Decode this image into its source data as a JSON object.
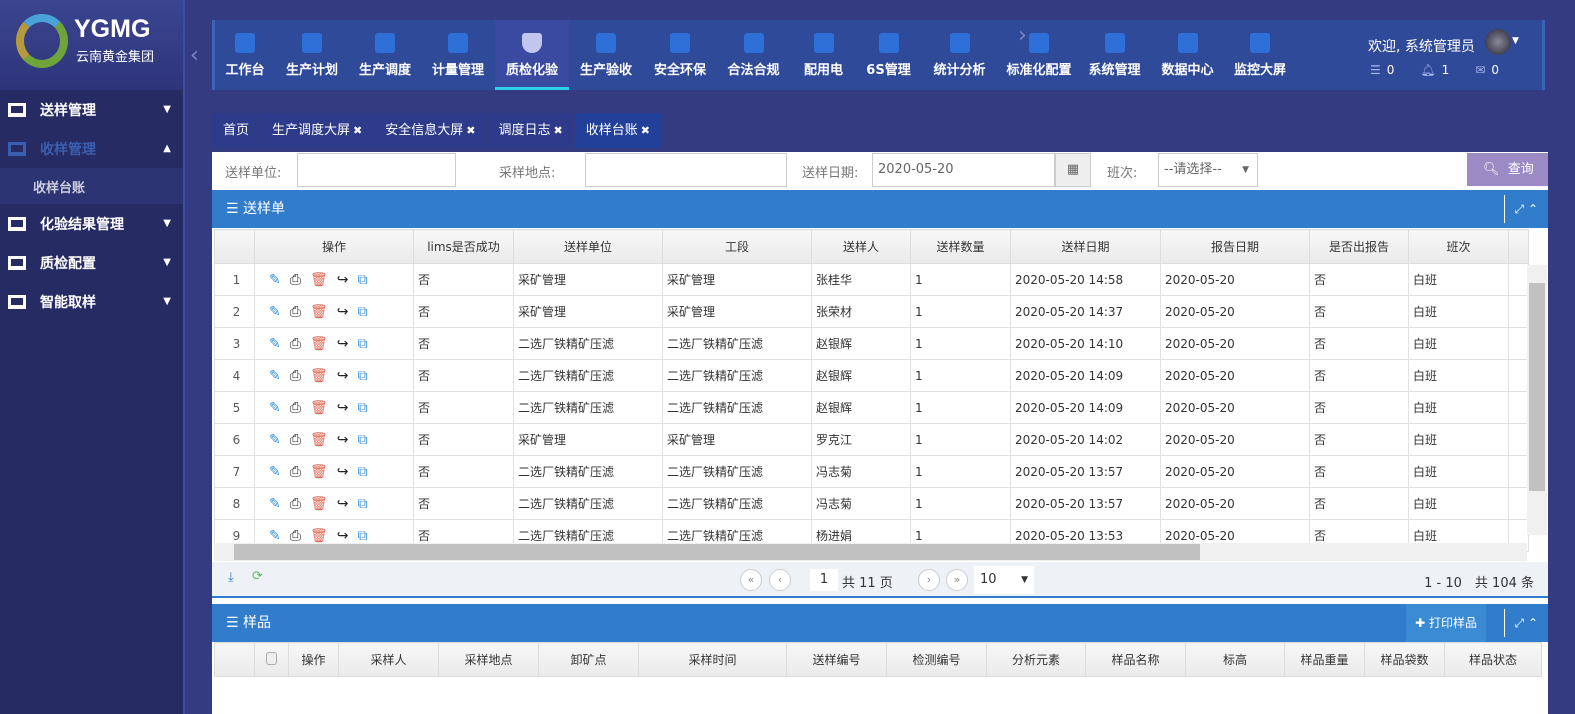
{
  "logo": {
    "en": "YGMG",
    "cn": "云南黄金集团"
  },
  "sidebar": {
    "items": [
      {
        "label": "送样管理",
        "open": false
      },
      {
        "label": "收样管理",
        "open": true,
        "sub": "收样台账"
      },
      {
        "label": "化验结果管理"
      },
      {
        "label": "质检配置"
      },
      {
        "label": "智能取样"
      }
    ]
  },
  "topnav": {
    "items": [
      "工作台",
      "生产计划",
      "生产调度",
      "计量管理",
      "质检化验",
      "生产验收",
      "安全环保",
      "合法合规",
      "配用电",
      "6S管理",
      "统计分析",
      "标准化配置",
      "系统管理",
      "数据中心",
      "监控大屏"
    ],
    "active": "质检化验"
  },
  "user": {
    "welcome": "欢迎, 系统管理员",
    "tasks": "0",
    "notifications": "1",
    "messages": "0"
  },
  "tabs": [
    {
      "label": "首页",
      "closable": false
    },
    {
      "label": "生产调度大屏",
      "closable": true
    },
    {
      "label": "安全信息大屏",
      "closable": true
    },
    {
      "label": "调度日志",
      "closable": true
    },
    {
      "label": "收样台账",
      "closable": true,
      "active": true
    }
  ],
  "filter": {
    "unit_label": "送样单位:",
    "unit_value": "",
    "site_label": "采样地点:",
    "site_value": "",
    "date_label": "送样日期:",
    "date_value": "2020-05-20",
    "shift_label": "班次:",
    "shift_value": "--请选择--",
    "query_label": "查询"
  },
  "sample_order": {
    "title": "送样单",
    "columns": [
      "操作",
      "lims是否成功",
      "送样单位",
      "工段",
      "送样人",
      "送样数量",
      "送样日期",
      "报告日期",
      "是否出报告",
      "班次"
    ],
    "rows": [
      [
        "1",
        "否",
        "采矿管理",
        "采矿管理",
        "张桂华",
        "1",
        "2020-05-20 14:58",
        "2020-05-20",
        "否",
        "白班"
      ],
      [
        "2",
        "否",
        "采矿管理",
        "采矿管理",
        "张荣材",
        "1",
        "2020-05-20 14:37",
        "2020-05-20",
        "否",
        "白班"
      ],
      [
        "3",
        "否",
        "二选厂铁精矿压滤",
        "二选厂铁精矿压滤",
        "赵银辉",
        "1",
        "2020-05-20 14:10",
        "2020-05-20",
        "否",
        "白班"
      ],
      [
        "4",
        "否",
        "二选厂铁精矿压滤",
        "二选厂铁精矿压滤",
        "赵银辉",
        "1",
        "2020-05-20 14:09",
        "2020-05-20",
        "否",
        "白班"
      ],
      [
        "5",
        "否",
        "二选厂铁精矿压滤",
        "二选厂铁精矿压滤",
        "赵银辉",
        "1",
        "2020-05-20 14:09",
        "2020-05-20",
        "否",
        "白班"
      ],
      [
        "6",
        "否",
        "采矿管理",
        "采矿管理",
        "罗克江",
        "1",
        "2020-05-20 14:02",
        "2020-05-20",
        "否",
        "白班"
      ],
      [
        "7",
        "否",
        "二选厂铁精矿压滤",
        "二选厂铁精矿压滤",
        "冯志菊",
        "1",
        "2020-05-20 13:57",
        "2020-05-20",
        "否",
        "白班"
      ],
      [
        "8",
        "否",
        "二选厂铁精矿压滤",
        "二选厂铁精矿压滤",
        "冯志菊",
        "1",
        "2020-05-20 13:57",
        "2020-05-20",
        "否",
        "白班"
      ],
      [
        "9",
        "否",
        "二选厂铁精矿压滤",
        "二选厂铁精矿压滤",
        "杨进娟",
        "1",
        "2020-05-20 13:53",
        "2020-05-20",
        "否",
        "白班"
      ]
    ],
    "pager": {
      "page": "1",
      "total_pages": "共 11 页",
      "page_size": "10",
      "summary": "1 - 10　共 104 条"
    }
  },
  "samples": {
    "title": "样品",
    "print_label": "打印样品",
    "columns": [
      "操作",
      "采样人",
      "采样地点",
      "卸矿点",
      "采样时间",
      "送样编号",
      "检测编号",
      "分析元素",
      "样品名称",
      "标高",
      "样品重量",
      "样品袋数",
      "样品状态"
    ]
  },
  "colors": {
    "sidebar": "#262b63",
    "header": "#317ccb",
    "nav": "#2f4a98",
    "accent": "#2ad0e6",
    "query": "#9b8ac4"
  }
}
